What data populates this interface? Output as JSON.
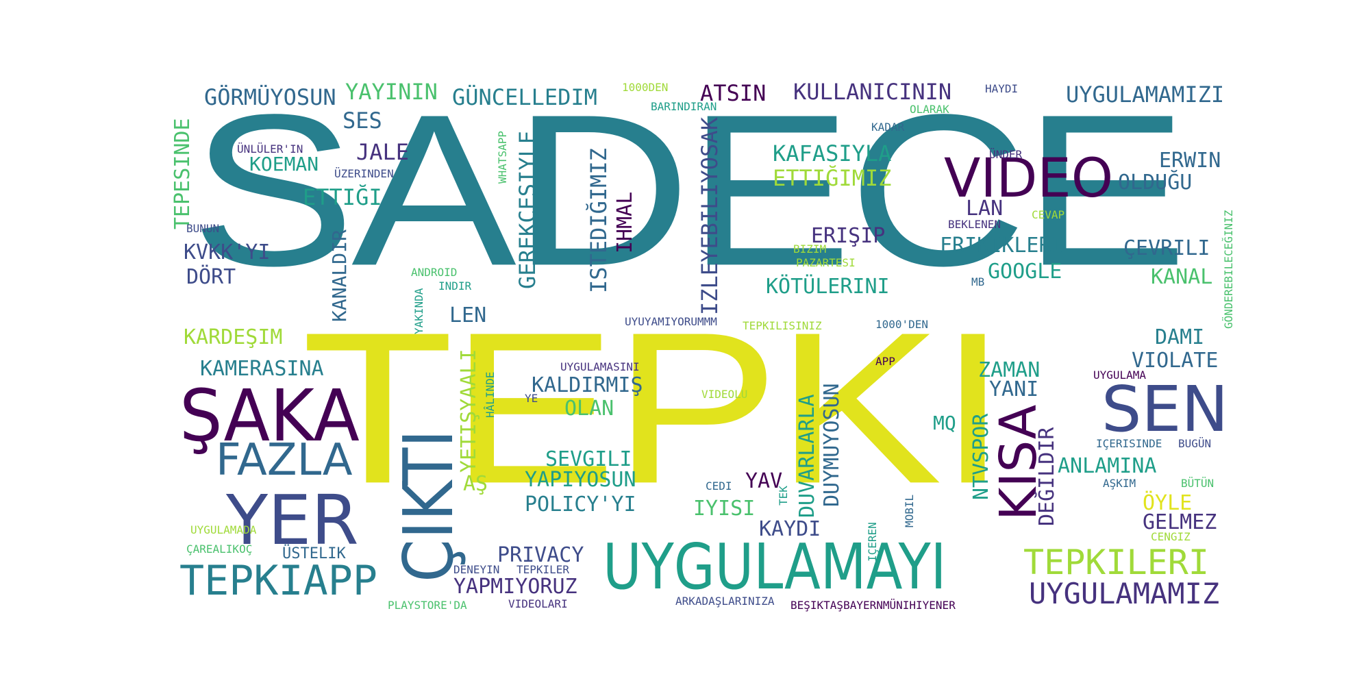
{
  "palette": {
    "yellow": "#e1e31d",
    "teal": "#277f8e",
    "blue": "#31688e",
    "indigo": "#3e4c8a",
    "purple": "#440154",
    "green": "#22a884",
    "lime": "#a0da39",
    "mint": "#4ac16d",
    "darkpurple": "#46327e"
  },
  "words": [
    {
      "text": "SADECE",
      "color": "#277f8e"
    },
    {
      "text": "TEPKI",
      "color": "#e1e31d"
    },
    {
      "text": "UYGULAMAYI",
      "color": "#1f9e89"
    },
    {
      "text": "ÇIKTI",
      "color": "#31688e"
    },
    {
      "text": "ŞAKA",
      "color": "#440154"
    },
    {
      "text": "YER",
      "color": "#3e4c8a"
    },
    {
      "text": "FAZLA",
      "color": "#31688e"
    },
    {
      "text": "TEPKIAPP",
      "color": "#277f8e"
    },
    {
      "text": "VIDEO",
      "color": "#440154"
    },
    {
      "text": "SEN",
      "color": "#3e4c8a"
    },
    {
      "text": "KISA",
      "color": "#440154"
    },
    {
      "text": "TEPKILERI",
      "color": "#a0da39"
    },
    {
      "text": "UYGULAMAMIZ",
      "color": "#46327e"
    },
    {
      "text": "GÖRMÜYOSUN",
      "color": "#31688e"
    },
    {
      "text": "YAYININ",
      "color": "#4ac16d"
    },
    {
      "text": "GÜNCELLEDIM",
      "color": "#277f8e"
    },
    {
      "text": "ATSIN",
      "color": "#440154"
    },
    {
      "text": "KULLANICININ",
      "color": "#46327e"
    },
    {
      "text": "UYGULAMAMIZI",
      "color": "#31688e"
    },
    {
      "text": "1000DEN",
      "color": "#a0da39"
    },
    {
      "text": "BARINDIRAN",
      "color": "#3e4c8a"
    },
    {
      "text": "OLARAK",
      "color": "#1f9e89"
    },
    {
      "text": "HAYDI",
      "color": "#4ac16d"
    },
    {
      "text": "KADAR",
      "color": "#31688e"
    },
    {
      "text": "TEPESINDE",
      "color": "#4ac16d"
    },
    {
      "text": "SES",
      "color": "#31688e"
    },
    {
      "text": "JALE",
      "color": "#46327e"
    },
    {
      "text": "KOEMAN",
      "color": "#1f9e89"
    },
    {
      "text": "ÜNLÜLER'IN",
      "color": "#46327e"
    },
    {
      "text": "ÜZERINDEN",
      "color": "#3e4c8a"
    },
    {
      "text": "ETTIĞI",
      "color": "#1f9e89"
    },
    {
      "text": "WHATSAPP",
      "color": "#4ac16d"
    },
    {
      "text": "GEREKÇESIYLE",
      "color": "#277f8e"
    },
    {
      "text": "ISTEDIĞIMIZ",
      "color": "#31688e"
    },
    {
      "text": "IHMAL",
      "color": "#440154"
    },
    {
      "text": "IZLEYEBILIYOSAK",
      "color": "#3e4c8a"
    },
    {
      "text": "KAFASIYLA",
      "color": "#1f9e89"
    },
    {
      "text": "ETTIĞIMIZ",
      "color": "#a0da39"
    },
    {
      "text": "ÜNDER",
      "color": "#46327e"
    },
    {
      "text": "ERWIN",
      "color": "#31688e"
    },
    {
      "text": "OLDUĞU",
      "color": "#31688e"
    },
    {
      "text": "LAN",
      "color": "#46327e"
    },
    {
      "text": "BEKLENEN",
      "color": "#46327e"
    },
    {
      "text": "CEVAP",
      "color": "#a0da39"
    },
    {
      "text": "BUNUN",
      "color": "#3e4c8a"
    },
    {
      "text": "KVKK'YI",
      "color": "#3e4c8a"
    },
    {
      "text": "DÖRT",
      "color": "#3e4c8a"
    },
    {
      "text": "KANALDIR",
      "color": "#31688e"
    },
    {
      "text": "ERIŞIP",
      "color": "#46327e"
    },
    {
      "text": "FRIKIKLERI",
      "color": "#277f8e"
    },
    {
      "text": "ÇEVRILI",
      "color": "#31688e"
    },
    {
      "text": "BIZIM",
      "color": "#a0da39"
    },
    {
      "text": "PAZARTESI",
      "color": "#a0da39"
    },
    {
      "text": "GOOGLE",
      "color": "#1f9e89"
    },
    {
      "text": "KÖTÜLERINI",
      "color": "#1f9e89"
    },
    {
      "text": "KANAL",
      "color": "#4ac16d"
    },
    {
      "text": "ANDROID",
      "color": "#4ac16d"
    },
    {
      "text": "INDIR",
      "color": "#1f9e89"
    },
    {
      "text": "MB",
      "color": "#31688e"
    },
    {
      "text": "GÖNDEREBILECEĞINIZ",
      "color": "#4ac16d"
    },
    {
      "text": "LEN",
      "color": "#31688e"
    },
    {
      "text": "YAKINDA",
      "color": "#1f9e89"
    },
    {
      "text": "UYUYAMIYORUMMM",
      "color": "#3e4c8a"
    },
    {
      "text": "TEPKILISINIZ",
      "color": "#a0da39"
    },
    {
      "text": "1000'DEN",
      "color": "#31688e"
    },
    {
      "text": "DAMI",
      "color": "#277f8e"
    },
    {
      "text": "KARDEŞIM",
      "color": "#a0da39"
    },
    {
      "text": "YETIŞYAALI",
      "color": "#a0da39"
    },
    {
      "text": "VIOLATE",
      "color": "#31688e"
    },
    {
      "text": "KAMERASINA",
      "color": "#277f8e"
    },
    {
      "text": "UYGULAMASINI",
      "color": "#46327e"
    },
    {
      "text": "APP",
      "color": "#440154"
    },
    {
      "text": "ZAMAN",
      "color": "#1f9e89"
    },
    {
      "text": "UYGULAMA",
      "color": "#440154"
    },
    {
      "text": "KALDIRMIŞ",
      "color": "#31688e"
    },
    {
      "text": "HÂLINDE",
      "color": "#1f9e89"
    },
    {
      "text": "YANI",
      "color": "#31688e"
    },
    {
      "text": "OLAN",
      "color": "#4ac16d"
    },
    {
      "text": "DUVARLARLA",
      "color": "#1f9e89"
    },
    {
      "text": "DUYMUYOSUN",
      "color": "#31688e"
    },
    {
      "text": "VIDEOLU",
      "color": "#a0da39"
    },
    {
      "text": "YE",
      "color": "#3e4c8a"
    },
    {
      "text": "MQ",
      "color": "#1f9e89"
    },
    {
      "text": "DEĞILDIR",
      "color": "#46327e"
    },
    {
      "text": "IÇERISINDE",
      "color": "#31688e"
    },
    {
      "text": "BUGÜN",
      "color": "#3e4c8a"
    },
    {
      "text": "NTVSPOR",
      "color": "#1f9e89"
    },
    {
      "text": "SEVGILI",
      "color": "#1f9e89"
    },
    {
      "text": "ANLAMINA",
      "color": "#1f9e89"
    },
    {
      "text": "YAPIYOSUN",
      "color": "#1f9e89"
    },
    {
      "text": "AŞ",
      "color": "#a0da39"
    },
    {
      "text": "YAV",
      "color": "#440154"
    },
    {
      "text": "AŞKIM",
      "color": "#31688e"
    },
    {
      "text": "BÜTÜN",
      "color": "#4ac16d"
    },
    {
      "text": "CEDI",
      "color": "#31688e"
    },
    {
      "text": "TEK",
      "color": "#1f9e89"
    },
    {
      "text": "POLICY'YI",
      "color": "#277f8e"
    },
    {
      "text": "IYISI",
      "color": "#4ac16d"
    },
    {
      "text": "ÖYLE",
      "color": "#e1e31d"
    },
    {
      "text": "KAYDI",
      "color": "#3e4c8a"
    },
    {
      "text": "GELMEZ",
      "color": "#46327e"
    },
    {
      "text": "CENGIZ",
      "color": "#a0da39"
    },
    {
      "text": "UYGULAMADA",
      "color": "#a0da39"
    },
    {
      "text": "ÜSTELIK",
      "color": "#4ac16d"
    },
    {
      "text": "ÇAREALIKOÇ",
      "color": "#31688e"
    },
    {
      "text": "PRIVACY",
      "color": "#3e4c8a"
    },
    {
      "text": "IÇEREN",
      "color": "#1f9e89"
    },
    {
      "text": "MOBIL",
      "color": "#31688e"
    },
    {
      "text": "DENEYIN",
      "color": "#3e4c8a"
    },
    {
      "text": "TEPKILER",
      "color": "#3e4c8a"
    },
    {
      "text": "YAPMIYORUZ",
      "color": "#46327e"
    },
    {
      "text": "PLAYSTORE'DA",
      "color": "#4ac16d"
    },
    {
      "text": "VIDEOLARI",
      "color": "#46327e"
    },
    {
      "text": "ARKADAŞLARINIZA",
      "color": "#3e4c8a"
    },
    {
      "text": "BEŞIKTAŞBAYERNMÜNIHIYENER",
      "color": "#440154"
    }
  ]
}
